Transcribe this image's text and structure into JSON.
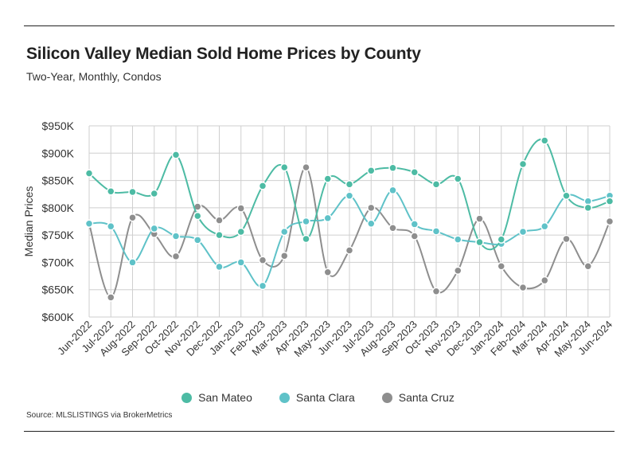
{
  "chart_data": {
    "type": "line",
    "title": "Silicon Valley Median Sold Home Prices by County",
    "subtitle": "Two-Year, Monthly, Condos",
    "ylabel": "Median Prices",
    "xlabel": "",
    "ylim": [
      600000,
      950000
    ],
    "yticks": [
      {
        "value": 600000,
        "label": "$600K"
      },
      {
        "value": 650000,
        "label": "$650K"
      },
      {
        "value": 700000,
        "label": "$700K"
      },
      {
        "value": 750000,
        "label": "$750K"
      },
      {
        "value": 800000,
        "label": "$800K"
      },
      {
        "value": 850000,
        "label": "$850K"
      },
      {
        "value": 900000,
        "label": "$900K"
      },
      {
        "value": 950000,
        "label": "$950K"
      }
    ],
    "categories": [
      "Jun-2022",
      "Jul-2022",
      "Aug-2022",
      "Sep-2022",
      "Oct-2022",
      "Nov-2022",
      "Dec-2022",
      "Jan-2023",
      "Feb-2023",
      "Mar-2023",
      "Apr-2023",
      "May-2023",
      "Jun-2023",
      "Jul-2023",
      "Aug-2023",
      "Sep-2023",
      "Oct-2023",
      "Nov-2023",
      "Dec-2023",
      "Jan-2024",
      "Feb-2024",
      "Mar-2024",
      "Apr-2024",
      "May-2024",
      "Jun-2024"
    ],
    "series": [
      {
        "name": "San Mateo",
        "color": "#4dbba4",
        "values": [
          863000,
          830000,
          829000,
          826000,
          897000,
          785000,
          750000,
          756000,
          840000,
          874000,
          743000,
          853000,
          843000,
          868000,
          873000,
          865000,
          843000,
          853000,
          737000,
          742000,
          880000,
          923000,
          822000,
          800000,
          812000
        ]
      },
      {
        "name": "Santa Clara",
        "color": "#5fc2c8",
        "values": [
          771000,
          766000,
          700000,
          762000,
          748000,
          741000,
          692000,
          700000,
          657000,
          756000,
          775000,
          781000,
          822000,
          771000,
          832000,
          770000,
          757000,
          742000,
          737000,
          734000,
          756000,
          766000,
          822000,
          812000,
          822000
        ]
      },
      {
        "name": "Santa Cruz",
        "color": "#8e8e8e",
        "values": [
          771000,
          636000,
          782000,
          752000,
          711000,
          802000,
          777000,
          799000,
          704000,
          712000,
          874000,
          682000,
          722000,
          800000,
          763000,
          748000,
          647000,
          685000,
          780000,
          693000,
          654000,
          667000,
          743000,
          693000,
          775000
        ]
      }
    ],
    "grid": true,
    "legend": "bottom-center",
    "source": "Source:  MLSLISTINGS via BrokerMetrics"
  }
}
